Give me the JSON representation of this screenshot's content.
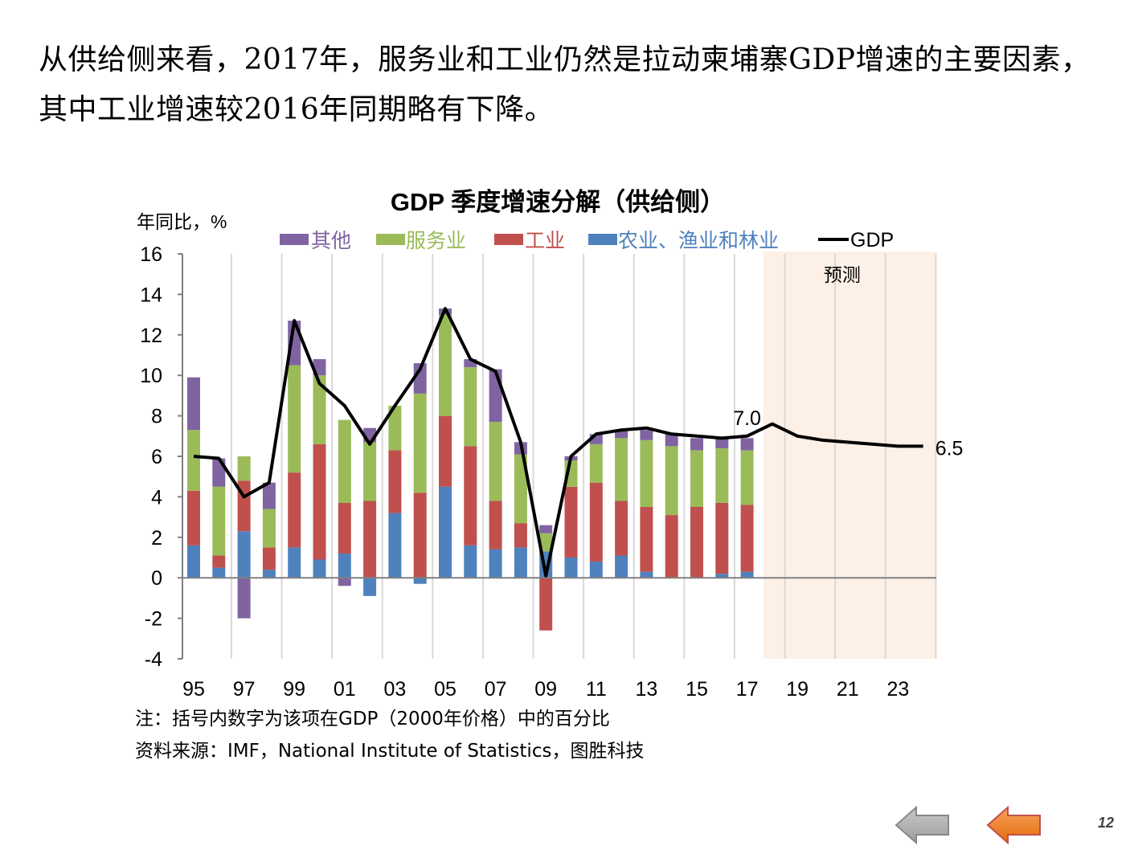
{
  "slide": {
    "heading": "从供给侧来看，2017年，服务业和工业仍然是拉动柬埔寨GDP增速的主要因素，其中工业增速较2016年同期略有下降。",
    "note": "注：括号内数字为该项在GDP（2000年价格）中的百分比",
    "source": "资料来源：IMF，National Institute of Statistics，图胜科技",
    "page_number": "12",
    "nav": {
      "back_icon": "left-arrow-grey",
      "forward_icon": "left-arrow-orange"
    }
  },
  "colors": {
    "other": "#8064A2",
    "services": "#9BBB59",
    "industry": "#C0504D",
    "agriculture": "#4F81BD",
    "gdp": "#000000",
    "forecast_bg": "#FDF0E6",
    "grid": "#D9D9D9",
    "axis": "#808080"
  },
  "chart_data": {
    "type": "bar",
    "stacked": true,
    "title": "GDP 季度增速分解（供给侧）",
    "ylabel": "年同比，%",
    "ylim": [
      -4,
      16
    ],
    "yticks": [
      "16",
      "14",
      "12",
      "10",
      "8",
      "6",
      "4",
      "2",
      "0",
      "-2",
      "-4"
    ],
    "x_tick_labels": [
      "95",
      "97",
      "99",
      "01",
      "03",
      "05",
      "07",
      "09",
      "11",
      "13",
      "15",
      "17",
      "19",
      "21",
      "23"
    ],
    "forecast_label": "预测",
    "forecast_range": [
      "2018",
      "2024"
    ],
    "grid": "vertical",
    "legend_position": "top",
    "years": [
      "1995",
      "1996",
      "1997",
      "1998",
      "1999",
      "2000",
      "2001",
      "2002",
      "2003",
      "2004",
      "2005",
      "2006",
      "2007",
      "2008",
      "2009",
      "2010",
      "2011",
      "2012",
      "2013",
      "2014",
      "2015",
      "2016",
      "2017"
    ],
    "series": [
      {
        "name": "农业、渔业和林业",
        "key": "agriculture",
        "values": [
          1.6,
          0.5,
          2.3,
          0.4,
          1.5,
          0.9,
          1.2,
          -0.9,
          3.2,
          -0.3,
          4.5,
          1.6,
          1.4,
          1.5,
          1.3,
          1.0,
          0.8,
          1.1,
          0.3,
          0.0,
          0.0,
          0.2,
          0.3
        ]
      },
      {
        "name": "工业",
        "key": "industry",
        "values": [
          2.7,
          0.6,
          2.5,
          1.1,
          3.7,
          5.7,
          2.5,
          3.8,
          3.1,
          4.2,
          3.5,
          4.9,
          2.4,
          1.2,
          -2.6,
          3.5,
          3.9,
          2.7,
          3.2,
          3.1,
          3.5,
          3.5,
          3.3
        ]
      },
      {
        "name": "服务业",
        "key": "services",
        "values": [
          3.0,
          3.4,
          1.2,
          1.9,
          5.3,
          3.4,
          4.1,
          2.9,
          2.2,
          4.9,
          5.0,
          3.9,
          3.9,
          3.4,
          0.9,
          1.3,
          1.9,
          3.1,
          3.3,
          3.4,
          2.8,
          2.7,
          2.7
        ]
      },
      {
        "name": "其他",
        "key": "other",
        "values": [
          2.6,
          1.4,
          -2.0,
          1.3,
          2.2,
          0.8,
          -0.4,
          0.7,
          0.0,
          1.5,
          0.3,
          0.4,
          2.6,
          0.6,
          0.4,
          0.2,
          0.5,
          0.4,
          0.5,
          0.6,
          0.6,
          0.5,
          0.6
        ]
      }
    ],
    "gdp_line": {
      "name": "GDP",
      "x": [
        "1995",
        "1996",
        "1997",
        "1998",
        "1999",
        "2000",
        "2001",
        "2002",
        "2003",
        "2004",
        "2005",
        "2006",
        "2007",
        "2008",
        "2009",
        "2010",
        "2011",
        "2012",
        "2013",
        "2014",
        "2015",
        "2016",
        "2017",
        "2018",
        "2019",
        "2020",
        "2021",
        "2022",
        "2023",
        "2024"
      ],
      "values": [
        6.0,
        5.9,
        4.0,
        4.7,
        12.7,
        9.6,
        8.5,
        6.6,
        8.5,
        10.3,
        13.3,
        10.8,
        10.2,
        6.7,
        0.1,
        6.0,
        7.1,
        7.3,
        7.4,
        7.1,
        7.0,
        6.9,
        7.0,
        7.6,
        7.0,
        6.8,
        6.7,
        6.6,
        6.5,
        6.5
      ]
    },
    "annotations": [
      {
        "text": "7.0",
        "x": "2017",
        "y": 7.0
      },
      {
        "text": "6.5",
        "x": "2024",
        "y": 6.5
      }
    ]
  }
}
